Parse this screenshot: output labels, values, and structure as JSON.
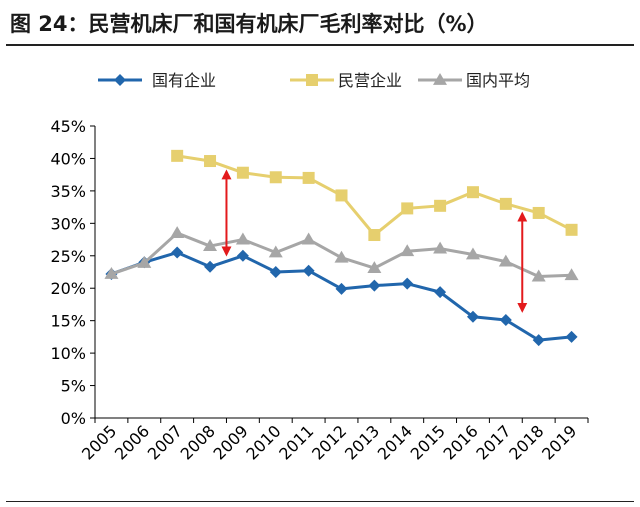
{
  "figure_title": "图 24：民营机床厂和国有机床厂毛利率对比（%）",
  "chart_data": {
    "type": "line",
    "title": "",
    "xlabel": "",
    "ylabel": "",
    "categories": [
      "2005",
      "2006",
      "2007",
      "2008",
      "2009",
      "2010",
      "2011",
      "2012",
      "2013",
      "2014",
      "2015",
      "2016",
      "2017",
      "2018",
      "2019"
    ],
    "ylim": [
      0,
      45
    ],
    "yticks": [
      "0%",
      "5%",
      "10%",
      "15%",
      "20%",
      "25%",
      "30%",
      "35%",
      "40%",
      "45%"
    ],
    "ytick_values": [
      0,
      5,
      10,
      15,
      20,
      25,
      30,
      35,
      40,
      45
    ],
    "grid": false,
    "legend_position": "top",
    "series": [
      {
        "name": "国有企业",
        "color": "#2166ac",
        "marker": "diamond",
        "values": [
          22.2,
          24.0,
          25.5,
          23.3,
          25.0,
          22.5,
          22.7,
          19.9,
          20.4,
          20.7,
          19.4,
          15.6,
          15.1,
          12.0,
          12.5
        ]
      },
      {
        "name": "民营企业",
        "color": "#e6cf6e",
        "marker": "square",
        "values": [
          null,
          null,
          40.4,
          39.6,
          37.8,
          37.1,
          37.0,
          34.3,
          28.2,
          32.3,
          32.7,
          34.8,
          33.0,
          31.6,
          29.0
        ]
      },
      {
        "name": "国内平均",
        "color": "#a6a6a6",
        "marker": "triangle",
        "values": [
          22.2,
          23.9,
          28.5,
          26.5,
          27.5,
          25.5,
          27.5,
          24.7,
          23.1,
          25.7,
          26.1,
          25.2,
          24.1,
          21.8,
          22.0
        ]
      }
    ],
    "annotations": [
      {
        "type": "double-arrow",
        "color": "#e31a1c",
        "x": "2008",
        "y_from": 38.0,
        "y_to": 25.2
      },
      {
        "type": "double-arrow",
        "color": "#e31a1c",
        "x": "2017",
        "y_from": 31.5,
        "y_to": 16.5
      }
    ]
  }
}
